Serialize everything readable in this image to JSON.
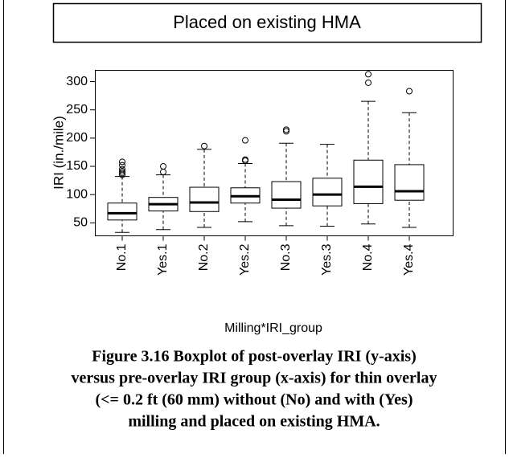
{
  "chart_data": {
    "type": "box",
    "title": "Placed on existing HMA",
    "x_label": "Milling*IRI_group",
    "y_label": "IRI (in./mile)",
    "categories": [
      "No.1",
      "Yes.1",
      "No.2",
      "Yes.2",
      "No.3",
      "Yes.3",
      "No.4",
      "Yes.4"
    ],
    "boxes": [
      {
        "low": 33,
        "q1": 55,
        "median": 67,
        "q3": 85,
        "high": 132,
        "outliers": [
          135,
          138,
          141,
          145,
          152,
          158
        ]
      },
      {
        "low": 38,
        "q1": 71,
        "median": 83,
        "q3": 95,
        "high": 135,
        "outliers": [
          140,
          150
        ]
      },
      {
        "low": 42,
        "q1": 70,
        "median": 86,
        "q3": 113,
        "high": 180,
        "outliers": [
          186
        ]
      },
      {
        "low": 52,
        "q1": 85,
        "median": 97,
        "q3": 112,
        "high": 155,
        "outliers": [
          160,
          162,
          196
        ]
      },
      {
        "low": 45,
        "q1": 76,
        "median": 91,
        "q3": 123,
        "high": 191,
        "outliers": [
          212,
          215
        ]
      },
      {
        "low": 44,
        "q1": 80,
        "median": 100,
        "q3": 129,
        "high": 189,
        "outliers": []
      },
      {
        "low": 48,
        "q1": 84,
        "median": 114,
        "q3": 161,
        "high": 265,
        "outliers": [
          298,
          313
        ]
      },
      {
        "low": 42,
        "q1": 90,
        "median": 106,
        "q3": 153,
        "high": 245,
        "outliers": [
          283
        ]
      }
    ],
    "ylim": [
      27,
      320
    ],
    "yticks": [
      50,
      100,
      150,
      200,
      250,
      300
    ],
    "color": "#ffffff"
  },
  "caption": [
    "Figure 3.16 Boxplot of post-overlay IRI (y-axis)",
    "versus pre-overlay IRI group (x-axis) for thin overlay",
    "(<= 0.2 ft (60 mm) without (No) and with (Yes)",
    "milling and placed on existing HMA."
  ]
}
